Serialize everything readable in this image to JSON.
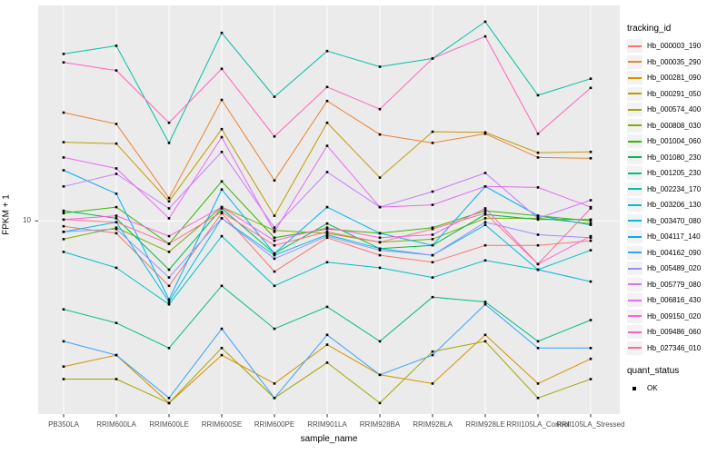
{
  "chart_data": {
    "type": "line",
    "title": "",
    "xlabel": "sample_name",
    "ylabel": "FPKM + 1",
    "yscale": "log10",
    "ylim": [
      2.3,
      51.5
    ],
    "y_ticks": [
      {
        "value": 10,
        "label": "10"
      }
    ],
    "grid": true,
    "panel_bg": "#EBEBEB",
    "grid_color": "#FFFFFF",
    "marker": "square",
    "marker_color": "#000000",
    "legend_position": "right",
    "legend_titles": {
      "color": "tracking_id",
      "shape": "quant_status"
    },
    "shape_legend_items": [
      {
        "label": "OK",
        "marker": "filled-black-square"
      }
    ],
    "categories": [
      "PB350LA",
      "RRIM600LA",
      "RRIM600LE",
      "RRIM600SE",
      "RRIM600PE",
      "RRIM901LA",
      "RRIM928BA",
      "RRIM928LA",
      "RRIM928LE",
      "RRII105LA_Control",
      "RRII105LA_Stressed"
    ],
    "series": [
      {
        "name": "Hb_000003_190",
        "color": "#F8766D",
        "values": [
          9.6,
          9.1,
          6.1,
          10.6,
          6.8,
          8.8,
          7.7,
          7.3,
          8.3,
          8.3,
          8.6
        ]
      },
      {
        "name": "Hb_000035_290",
        "color": "#EA8331",
        "values": [
          22.8,
          20.9,
          11.9,
          25.1,
          13.6,
          24.9,
          19.3,
          18.1,
          19.4,
          16.2,
          16.1
        ]
      },
      {
        "name": "Hb_000281_090",
        "color": "#D89000",
        "values": [
          3.3,
          3.6,
          2.5,
          3.6,
          2.9,
          3.9,
          3.1,
          2.9,
          4.2,
          2.9,
          3.5
        ]
      },
      {
        "name": "Hb_000291_050",
        "color": "#C09B00",
        "values": [
          18.2,
          18.0,
          11.6,
          20.1,
          10.4,
          21.1,
          13.9,
          19.7,
          19.6,
          16.8,
          16.9
        ]
      },
      {
        "name": "Hb_000574_400",
        "color": "#A3A500",
        "values": [
          3.0,
          3.0,
          2.5,
          3.8,
          2.6,
          3.4,
          2.5,
          3.7,
          4.0,
          2.6,
          3.0
        ]
      },
      {
        "name": "Hb_000808_030",
        "color": "#7CAE00",
        "values": [
          8.7,
          9.5,
          7.9,
          11.1,
          9.3,
          9.1,
          8.5,
          8.7,
          10.2,
          10.2,
          9.8
        ]
      },
      {
        "name": "Hb_001004_060",
        "color": "#39B600",
        "values": [
          10.6,
          11.1,
          8.4,
          13.5,
          8.8,
          9.4,
          9.1,
          9.5,
          10.8,
          10.4,
          10.0
        ]
      },
      {
        "name": "Hb_001080_230",
        "color": "#00BB4E",
        "values": [
          10.8,
          10.2,
          6.9,
          11.0,
          7.8,
          9.8,
          8.1,
          8.3,
          10.5,
          10.1,
          10.1
        ]
      },
      {
        "name": "Hb_001205_230",
        "color": "#00BF7D",
        "values": [
          5.1,
          4.6,
          3.8,
          6.1,
          4.4,
          5.2,
          4.0,
          5.6,
          5.4,
          4.0,
          4.7
        ]
      },
      {
        "name": "Hb_002234_170",
        "color": "#00C1A3",
        "values": [
          35.6,
          37.9,
          18.1,
          41.8,
          25.7,
          36.4,
          32.3,
          34.4,
          45.5,
          26.0,
          29.5
        ]
      },
      {
        "name": "Hb_003206_130",
        "color": "#00BFC4",
        "values": [
          7.9,
          7.0,
          5.3,
          8.9,
          6.1,
          7.3,
          7.0,
          6.5,
          7.4,
          6.9,
          8.0
        ]
      },
      {
        "name": "Hb_003470_080",
        "color": "#00BAE0",
        "values": [
          9.2,
          9.9,
          5.4,
          10.2,
          7.7,
          9.0,
          8.1,
          7.7,
          9.7,
          6.9,
          6.3
        ]
      },
      {
        "name": "Hb_004117_140",
        "color": "#00B0F6",
        "values": [
          14.7,
          12.3,
          5.5,
          12.7,
          7.8,
          11.1,
          9.1,
          8.3,
          13.0,
          10.4,
          9.7
        ]
      },
      {
        "name": "Hb_004162_090",
        "color": "#35A2FF",
        "values": [
          4.0,
          3.6,
          2.6,
          4.4,
          2.6,
          4.2,
          3.1,
          3.6,
          5.3,
          3.8,
          3.8
        ]
      },
      {
        "name": "Hb_005489_020",
        "color": "#9590FF",
        "values": [
          9.2,
          9.4,
          6.5,
          10.2,
          7.5,
          8.9,
          8.0,
          7.7,
          9.9,
          9.0,
          8.8
        ]
      },
      {
        "name": "Hb_005779_080",
        "color": "#C77CFF",
        "values": [
          13.0,
          14.3,
          11.0,
          16.9,
          9.5,
          14.5,
          11.1,
          12.5,
          14.4,
          10.2,
          11.7
        ]
      },
      {
        "name": "Hb_006816_430",
        "color": "#E76BF3",
        "values": [
          16.2,
          14.9,
          10.2,
          18.9,
          9.2,
          17.7,
          11.1,
          11.3,
          13.0,
          12.9,
          11.1
        ]
      },
      {
        "name": "Hb_009150_020",
        "color": "#FA62DB",
        "values": [
          10.1,
          10.4,
          8.9,
          11.1,
          8.6,
          9.5,
          8.8,
          9.0,
          11.0,
          7.2,
          8.9
        ]
      },
      {
        "name": "Hb_009486_060",
        "color": "#FF62BC",
        "values": [
          33.4,
          31.4,
          21.1,
          31.8,
          19.0,
          27.7,
          23.4,
          34.4,
          40.7,
          19.4,
          27.5
        ]
      },
      {
        "name": "Hb_027346_010",
        "color": "#FF6C91",
        "values": [
          10.1,
          9.9,
          8.4,
          10.7,
          8.3,
          9.2,
          8.5,
          9.4,
          10.6,
          7.2,
          11.0
        ]
      }
    ]
  }
}
